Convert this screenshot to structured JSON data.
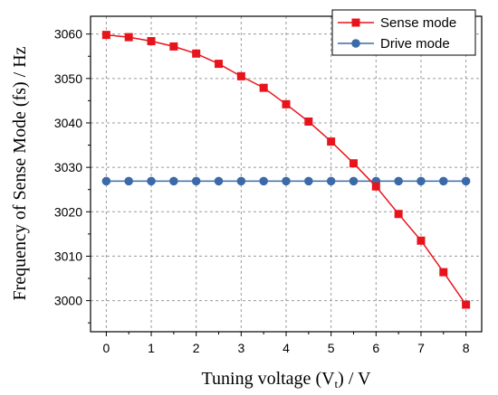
{
  "chart_data": {
    "type": "line",
    "title": "",
    "xlabel": "Tuning voltage (V",
    "xlabel_sub": "t",
    "xlabel_end": ") / V",
    "ylabel": "Frequency of Sense Mode (fs) / Hz",
    "xlim": [
      -0.35,
      8.35
    ],
    "ylim": [
      2993,
      3064
    ],
    "xticks": [
      0,
      1,
      2,
      3,
      4,
      5,
      6,
      7,
      8
    ],
    "xtick_labels": [
      "0",
      "1",
      "2",
      "3",
      "4",
      "5",
      "6",
      "7",
      "8"
    ],
    "yticks": [
      3000,
      3010,
      3020,
      3030,
      3040,
      3050,
      3060
    ],
    "ytick_labels": [
      "3000",
      "3010",
      "3020",
      "3030",
      "3040",
      "3050",
      "3060"
    ],
    "grid": true,
    "legend_position": "top-right",
    "x": [
      0,
      0.5,
      1,
      1.5,
      2,
      2.5,
      3,
      3.5,
      4,
      4.5,
      5,
      5.5,
      6,
      6.5,
      7,
      7.5,
      8
    ],
    "series": [
      {
        "name": "Sense mode",
        "color": "#e8141c",
        "marker": "square",
        "values": [
          3059.8,
          3059.3,
          3058.4,
          3057.2,
          3055.6,
          3053.3,
          3050.5,
          3047.9,
          3044.2,
          3040.3,
          3035.8,
          3030.9,
          3025.7,
          3019.5,
          3013.5,
          3006.4,
          2999.1
        ]
      },
      {
        "name": "Drive mode",
        "color": "#3c6aa8",
        "marker": "circle",
        "values": [
          3026.9,
          3026.9,
          3026.9,
          3026.9,
          3026.9,
          3026.9,
          3026.9,
          3026.9,
          3026.9,
          3026.9,
          3026.9,
          3026.9,
          3026.9,
          3026.9,
          3026.9,
          3026.9,
          3026.9
        ]
      }
    ]
  }
}
